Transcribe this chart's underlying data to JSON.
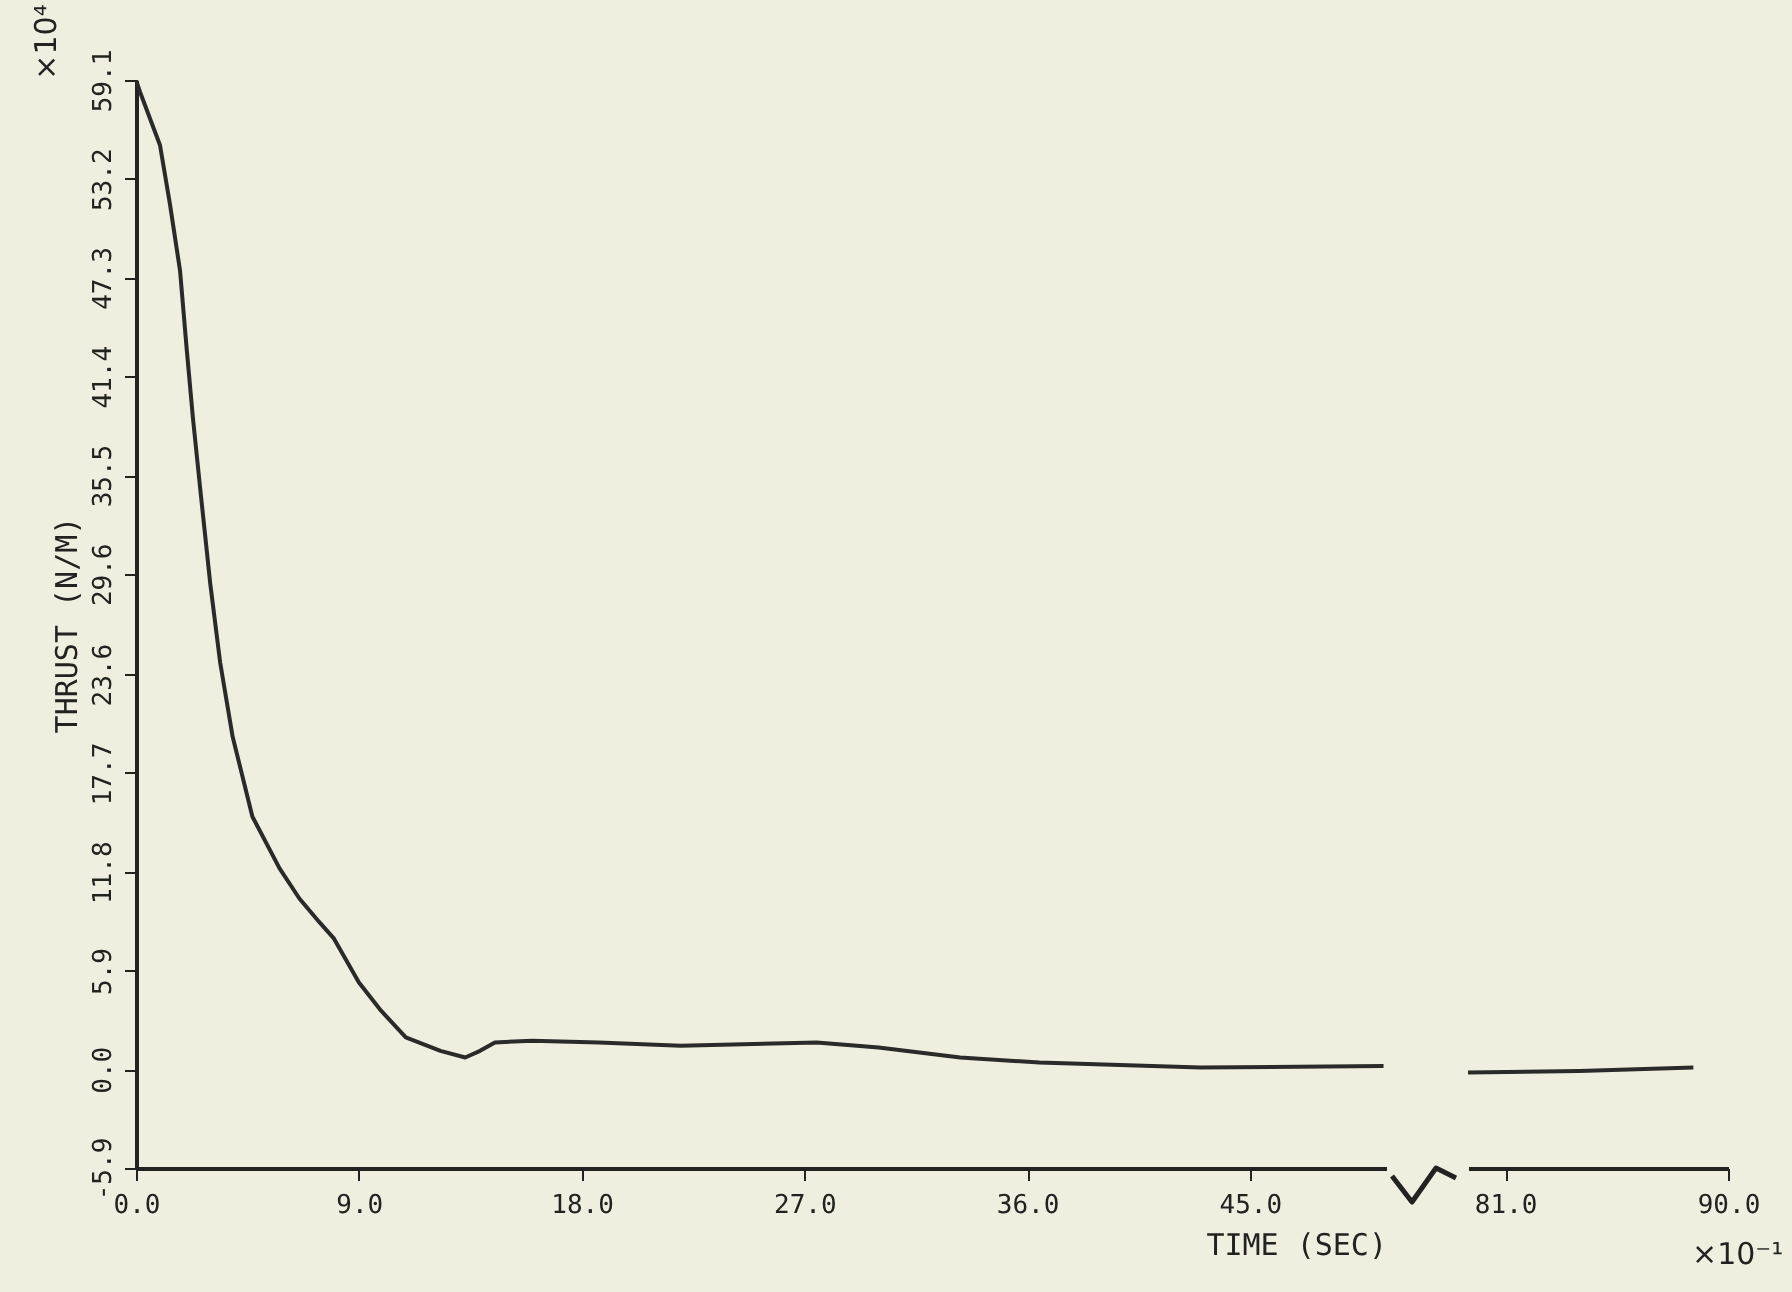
{
  "chart_data": [
    {
      "type": "line",
      "xlabel": "TIME (SEC)",
      "ylabel": "THRUST (N/M)",
      "annotations": [
        "×10⁴"
      ],
      "xlim": [
        0,
        50.5
      ],
      "ylim": [
        -5.9,
        59.1
      ],
      "xticks": [
        {
          "value": 0,
          "label": "0.0"
        },
        {
          "value": 9,
          "label": "9.0"
        },
        {
          "value": 18,
          "label": "18.0"
        },
        {
          "value": 27,
          "label": "27.0"
        },
        {
          "value": 36,
          "label": "36.0"
        },
        {
          "value": 45,
          "label": "45.0"
        }
      ],
      "yticks": [
        -5.9,
        {
          "value": 0,
          "label": "0.0"
        },
        5.9,
        11.8,
        17.7,
        23.6,
        29.6,
        35.5,
        41.4,
        47.3,
        53.2,
        59.1
      ],
      "series": [
        {
          "color": "#2a2a2a",
          "x": [
            0,
            0.16,
            0.97,
            1.37,
            1.78,
            2.05,
            2.3,
            2.6,
            3.0,
            3.4,
            3.9,
            4.7,
            5.8,
            6.6,
            7.4,
            8.0,
            9.0,
            9.9,
            10.9,
            12.3,
            13.3,
            13.9,
            14.5,
            16.0,
            18.7,
            22,
            27.5,
            30,
            33.3,
            36.5,
            43,
            50.4
          ],
          "values": [
            59.1,
            58.4,
            55.2,
            51.7,
            47.7,
            43.0,
            38.9,
            34.6,
            29.0,
            24.3,
            19.9,
            15.1,
            12.0,
            10.2,
            8.8,
            7.8,
            5.2,
            3.5,
            1.9,
            1.1,
            0.7,
            1.1,
            1.6,
            1.7,
            1.6,
            1.4,
            1.6,
            1.3,
            0.7,
            0.4,
            0.1,
            0.2
          ]
        }
      ]
    },
    {
      "type": "line",
      "annotations": [
        "×10⁻¹"
      ],
      "tick_labels": "x",
      "xlim": [
        79.5,
        90
      ],
      "ylim": [
        -5.9,
        59.1
      ],
      "xticks": [
        {
          "value": 81,
          "label": "81.0"
        },
        {
          "value": 90,
          "label": "90.0"
        }
      ],
      "series": [
        {
          "color": "#2a2a2a",
          "x": [
            79.5,
            84,
            88.6
          ],
          "values": [
            -0.2,
            -0.1,
            0.1
          ]
        }
      ]
    }
  ]
}
